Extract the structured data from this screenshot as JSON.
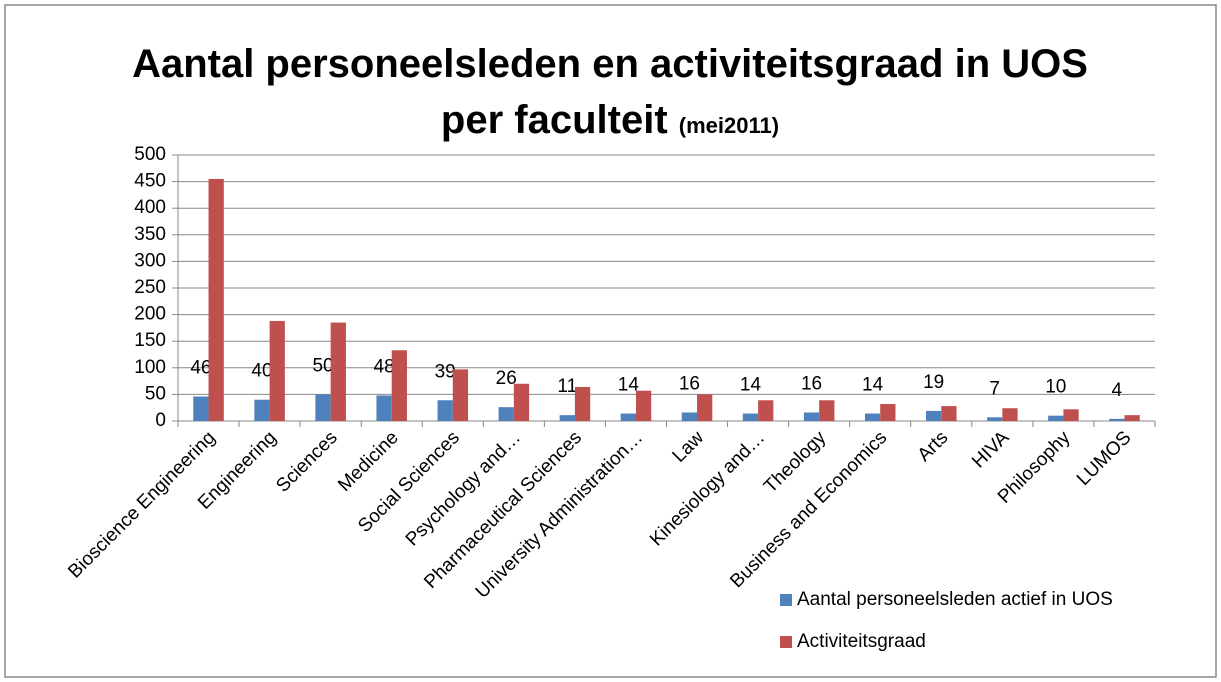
{
  "chart_data": {
    "type": "bar",
    "title": "Aantal personeelsleden en activiteitsgraad in UOS per faculteit",
    "subtitle": "(mei2011)",
    "categories": [
      "Bioscience Engineering",
      "Engineering",
      "Sciences",
      "Medicine",
      "Social Sciences",
      "Psychology and…",
      "Pharmaceutical Sciences",
      "University Administration…",
      "Law",
      "Kinesiology and…",
      "Theology",
      "Business and Economics",
      "Arts",
      "HIVA",
      "Philosophy",
      "LUMOS"
    ],
    "series": [
      {
        "name": "Aantal personeelsleden actief in UOS",
        "color": "#4f81bd",
        "values": [
          46,
          40,
          50,
          48,
          39,
          26,
          11,
          14,
          16,
          14,
          16,
          14,
          19,
          7,
          10,
          4
        ]
      },
      {
        "name": "Activiteitsgraad",
        "color": "#c0504d",
        "values": [
          455,
          188,
          185,
          133,
          97,
          70,
          64,
          57,
          50,
          39,
          39,
          32,
          28,
          24,
          22,
          11
        ]
      }
    ],
    "ylim": [
      0,
      500
    ],
    "yticks": [
      0,
      50,
      100,
      150,
      200,
      250,
      300,
      350,
      400,
      450,
      500
    ],
    "grid": true,
    "legend": "bottom-right",
    "data_labels_series": 0
  }
}
